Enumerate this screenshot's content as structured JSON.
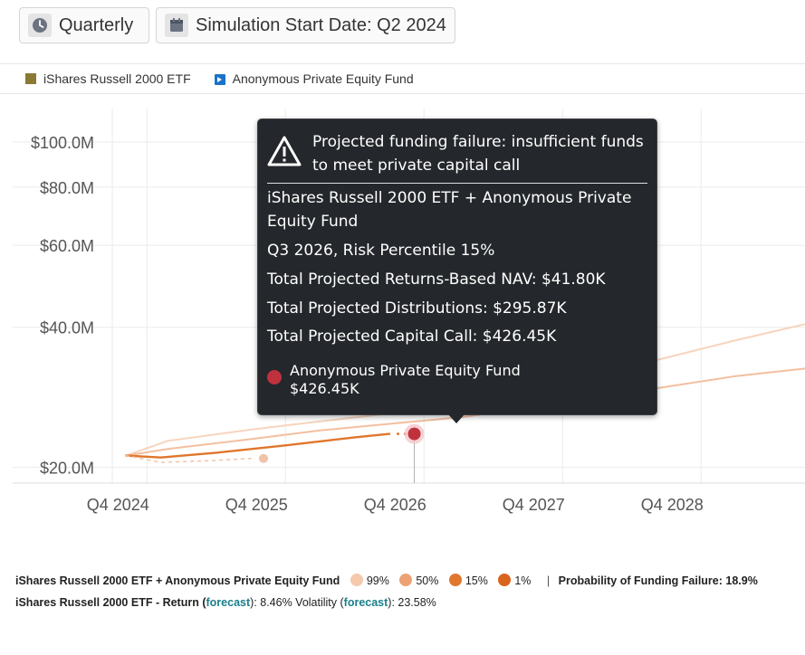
{
  "toolbar": {
    "period_label": "Quarterly",
    "start_label": "Simulation Start Date: Q2 2024",
    "period_icon": "clock-icon",
    "start_icon": "calendar-icon"
  },
  "legend": {
    "items": [
      {
        "label": "iShares Russell 2000 ETF",
        "color": "#8a7a35"
      },
      {
        "label": "Anonymous Private Equity Fund",
        "color": "#1a73c8"
      }
    ]
  },
  "tooltip": {
    "headline": "Projected funding failure: insufficient funds to meet private capital call",
    "portfolio": "iShares Russell 2000 ETF + Anonymous Private Equity Fund",
    "period": "Q3 2026, Risk Percentile 15%",
    "nav": "Total Projected Returns-Based NAV: $41.80K",
    "distributions": "Total Projected Distributions: $295.87K",
    "capital_call": "Total Projected Capital Call: $426.45K",
    "fund_name": "Anonymous Private Equity Fund",
    "fund_value": "$426.45K",
    "warning_icon": "warning-triangle-icon"
  },
  "footer": {
    "line1_portfolio": "iShares Russell 2000 ETF  +  Anonymous Private Equity Fund",
    "percentiles": [
      {
        "label": "99%",
        "color": "#f5c9ae"
      },
      {
        "label": "50%",
        "color": "#eda276"
      },
      {
        "label": "15%",
        "color": "#e0772e"
      },
      {
        "label": "1%",
        "color": "#d9641e"
      }
    ],
    "separator": "|",
    "failure_prob": "Probability of Funding Failure: 18.9%",
    "line2_name": "iShares Russell 2000 ETF - Return (",
    "forecast_label": "forecast",
    "return_value": "): 8.46% Volatility (",
    "volatility_value": "): 23.58%"
  },
  "chart_data": {
    "type": "line",
    "y_scale": "log",
    "ylim": [
      18.5,
      118
    ],
    "x_range": [
      2024.5,
      2029.5
    ],
    "y_ticks": [
      {
        "value": 100,
        "label": "$100.0M"
      },
      {
        "value": 80,
        "label": "$80.0M"
      },
      {
        "value": 60,
        "label": "$60.0M"
      },
      {
        "value": 40,
        "label": "$40.0M"
      },
      {
        "value": 20,
        "label": "$20.0M"
      }
    ],
    "x_ticks": [
      {
        "value": 2024.75,
        "label": "Q4 2024"
      },
      {
        "value": 2025.75,
        "label": "Q4 2025"
      },
      {
        "value": 2026.75,
        "label": "Q4 2026"
      },
      {
        "value": 2027.75,
        "label": "Q4 2027"
      },
      {
        "value": 2028.75,
        "label": "Q4 2028"
      }
    ],
    "grid": true,
    "series": [
      {
        "name": "99%",
        "color": "#f7d4be",
        "x": [
          2024.6,
          2024.9,
          2025.5,
          2026.0,
          2026.5,
          2027.0,
          2027.5,
          2028.0,
          2028.5,
          2029.0,
          2029.5
        ],
        "y": [
          21.2,
          22.8,
          24.1,
          25.1,
          26.1,
          27.6,
          29.5,
          31.8,
          34.4,
          37.5,
          40.6
        ]
      },
      {
        "name": "50%",
        "color": "#f3bfa0",
        "x": [
          2024.6,
          2024.9,
          2025.5,
          2026.0,
          2026.5,
          2027.0,
          2027.5,
          2028.0,
          2028.5,
          2029.0,
          2029.5
        ],
        "y": [
          21.2,
          21.9,
          23.0,
          24.0,
          24.8,
          25.6,
          26.8,
          28.3,
          29.8,
          31.4,
          32.6
        ]
      },
      {
        "name": "15%",
        "color": "#e0762b",
        "x": [
          2024.6,
          2024.85,
          2025.25,
          2025.75,
          2026.25,
          2026.5
        ],
        "y": [
          21.2,
          21.0,
          21.5,
          22.3,
          23.2,
          23.6
        ]
      },
      {
        "name": "1%",
        "color": "#f2c3a8",
        "x": [
          2024.6,
          2024.85,
          2025.25,
          2025.5
        ],
        "y": [
          21.2,
          20.5,
          20.7,
          20.9
        ]
      }
    ],
    "highlight": {
      "x": 2026.68,
      "y": 23.6,
      "label": "Q3 2026"
    }
  }
}
